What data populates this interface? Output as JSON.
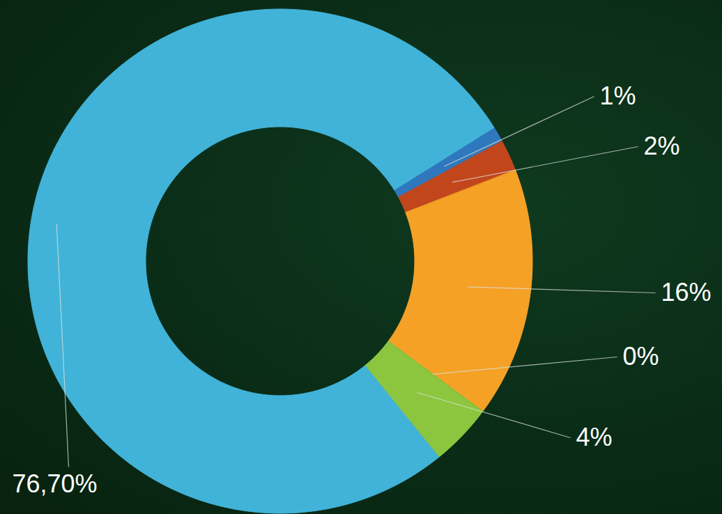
{
  "chart_data": {
    "type": "pie",
    "values": [
      1,
      2,
      16,
      0,
      4,
      76.7
    ],
    "value_labels": [
      "1%",
      "2%",
      "16%",
      "0%",
      "4%",
      "76,70%"
    ],
    "colors": [
      "#2f78bd",
      "#c2461c",
      "#f5a126",
      "#3f8a2a",
      "#8cc63f",
      "#41b3d9"
    ],
    "data_labels": true
  }
}
